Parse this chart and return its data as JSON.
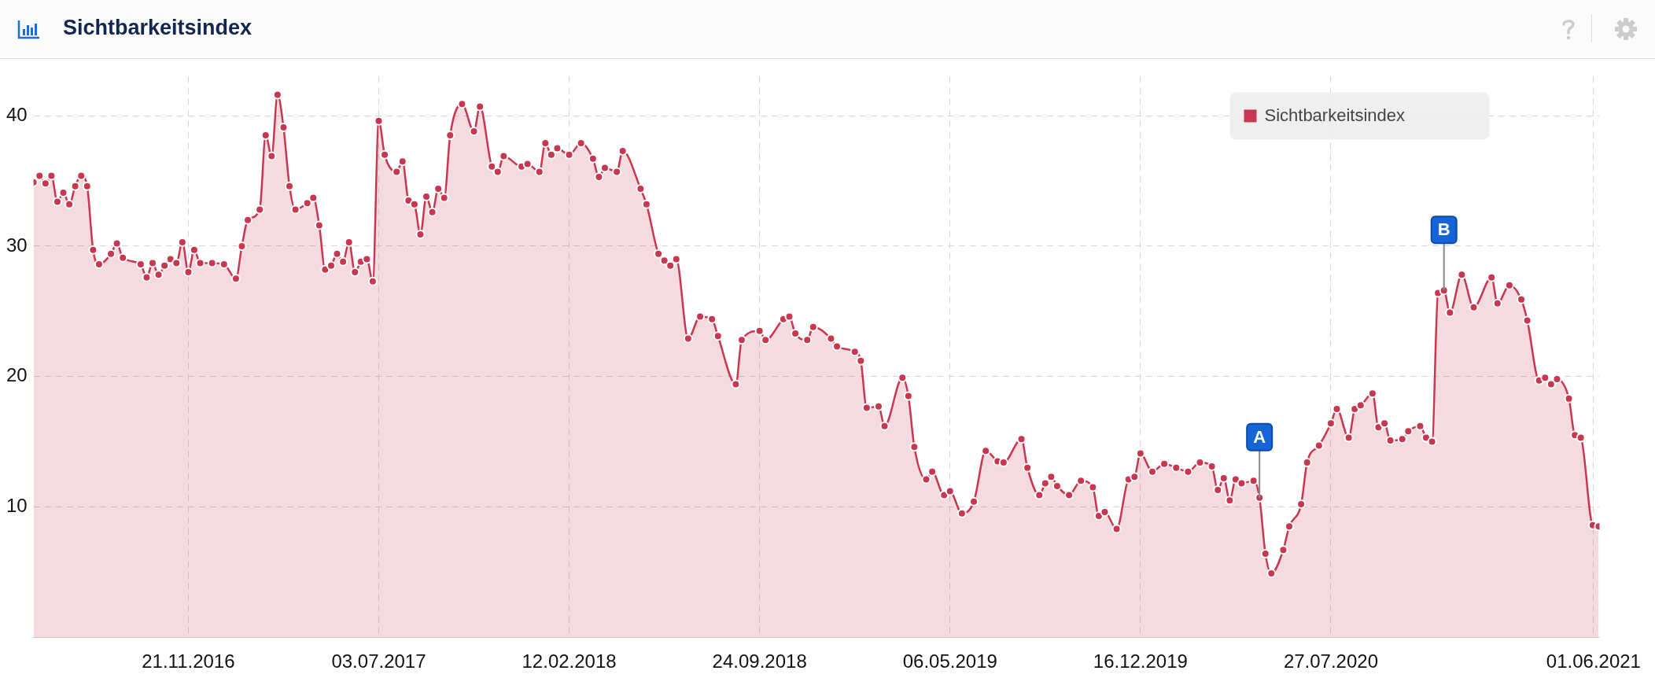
{
  "chart_data": {
    "type": "area",
    "title": "Sichtbarkeitsindex",
    "x": [
      "2016-05-23",
      "2016-05-30",
      "2016-06-06",
      "2016-06-13",
      "2016-06-20",
      "2016-06-27",
      "2016-07-04",
      "2016-07-11",
      "2016-07-18",
      "2016-07-25",
      "2016-08-01",
      "2016-08-08",
      "2016-08-22",
      "2016-08-29",
      "2016-09-05",
      "2016-09-26",
      "2016-10-03",
      "2016-10-10",
      "2016-10-17",
      "2016-10-24",
      "2016-10-31",
      "2016-11-07",
      "2016-11-14",
      "2016-11-21",
      "2016-11-28",
      "2016-12-05",
      "2016-12-19",
      "2017-01-02",
      "2017-01-16",
      "2017-01-23",
      "2017-01-30",
      "2017-02-13",
      "2017-02-20",
      "2017-02-27",
      "2017-03-06",
      "2017-03-13",
      "2017-03-20",
      "2017-03-27",
      "2017-04-10",
      "2017-04-17",
      "2017-04-24",
      "2017-05-01",
      "2017-05-08",
      "2017-05-15",
      "2017-05-22",
      "2017-05-29",
      "2017-06-05",
      "2017-06-12",
      "2017-06-19",
      "2017-06-26",
      "2017-07-03",
      "2017-07-10",
      "2017-07-24",
      "2017-07-31",
      "2017-08-07",
      "2017-08-14",
      "2017-08-21",
      "2017-08-28",
      "2017-09-04",
      "2017-09-11",
      "2017-09-18",
      "2017-09-25",
      "2017-10-09",
      "2017-10-23",
      "2017-10-30",
      "2017-11-13",
      "2017-11-20",
      "2017-11-27",
      "2017-12-18",
      "2017-12-25",
      "2018-01-08",
      "2018-01-15",
      "2018-01-22",
      "2018-01-29",
      "2018-02-12",
      "2018-02-26",
      "2018-03-12",
      "2018-03-19",
      "2018-03-26",
      "2018-04-09",
      "2018-04-16",
      "2018-05-07",
      "2018-05-14",
      "2018-05-28",
      "2018-06-04",
      "2018-06-11",
      "2018-06-18",
      "2018-07-02",
      "2018-07-16",
      "2018-07-30",
      "2018-08-06",
      "2018-08-27",
      "2018-09-03",
      "2018-09-24",
      "2018-10-01",
      "2018-10-22",
      "2018-10-29",
      "2018-11-05",
      "2018-11-19",
      "2018-11-26",
      "2018-12-17",
      "2018-12-24",
      "2019-01-14",
      "2019-01-21",
      "2019-01-28",
      "2019-02-11",
      "2019-02-18",
      "2019-03-11",
      "2019-03-18",
      "2019-03-25",
      "2019-04-08",
      "2019-04-15",
      "2019-04-29",
      "2019-05-06",
      "2019-05-20",
      "2019-06-03",
      "2019-06-17",
      "2019-07-01",
      "2019-07-08",
      "2019-07-29",
      "2019-08-05",
      "2019-08-19",
      "2019-08-26",
      "2019-09-02",
      "2019-09-09",
      "2019-09-23",
      "2019-10-07",
      "2019-10-21",
      "2019-10-28",
      "2019-11-04",
      "2019-11-18",
      "2019-12-02",
      "2019-12-09",
      "2019-12-16",
      "2019-12-30",
      "2020-01-13",
      "2020-01-27",
      "2020-02-10",
      "2020-02-24",
      "2020-03-09",
      "2020-03-16",
      "2020-03-23",
      "2020-03-30",
      "2020-04-06",
      "2020-04-13",
      "2020-04-27",
      "2020-05-04",
      "2020-05-11",
      "2020-05-18",
      "2020-06-01",
      "2020-06-08",
      "2020-06-22",
      "2020-06-29",
      "2020-07-13",
      "2020-07-27",
      "2020-08-03",
      "2020-08-17",
      "2020-08-24",
      "2020-08-31",
      "2020-09-14",
      "2020-09-21",
      "2020-09-28",
      "2020-10-05",
      "2020-10-19",
      "2020-10-26",
      "2020-11-09",
      "2020-11-16",
      "2020-11-23",
      "2020-11-30",
      "2020-12-07",
      "2020-12-14",
      "2020-12-28",
      "2021-01-11",
      "2021-02-01",
      "2021-02-08",
      "2021-02-22",
      "2021-03-08",
      "2021-03-15",
      "2021-03-29",
      "2021-04-05",
      "2021-04-12",
      "2021-04-19",
      "2021-05-03",
      "2021-05-10",
      "2021-05-17",
      "2021-05-31",
      "2021-06-07"
    ],
    "series": [
      {
        "name": "Sichtbarkeitsindex",
        "color": "#c8374f",
        "values": [
          34.9,
          35.4,
          34.8,
          35.4,
          33.4,
          34.1,
          33.2,
          34.6,
          35.4,
          34.6,
          29.7,
          28.6,
          29.4,
          30.2,
          29.1,
          28.6,
          27.6,
          28.7,
          27.8,
          28.5,
          29.0,
          28.7,
          30.3,
          28.0,
          29.7,
          28.7,
          28.7,
          28.6,
          27.5,
          30.0,
          32.0,
          32.8,
          38.5,
          36.9,
          41.6,
          39.1,
          34.6,
          32.8,
          33.3,
          33.7,
          31.6,
          28.2,
          28.5,
          29.4,
          28.8,
          30.3,
          28.0,
          28.8,
          29.0,
          27.3,
          39.6,
          37.0,
          35.7,
          36.5,
          33.5,
          33.2,
          30.9,
          33.8,
          32.6,
          34.4,
          33.7,
          38.5,
          40.9,
          38.8,
          40.7,
          36.1,
          35.7,
          36.9,
          36.1,
          36.3,
          35.7,
          37.9,
          37.0,
          37.5,
          37.0,
          37.9,
          36.7,
          35.3,
          36.0,
          35.7,
          37.3,
          34.4,
          33.2,
          29.4,
          28.9,
          28.5,
          29.0,
          22.9,
          24.6,
          24.4,
          23.1,
          19.4,
          22.8,
          23.5,
          22.8,
          24.4,
          24.6,
          23.3,
          22.8,
          23.8,
          22.9,
          22.3,
          21.9,
          21.2,
          17.6,
          17.7,
          16.2,
          19.9,
          18.5,
          14.6,
          12.1,
          12.7,
          10.9,
          11.2,
          9.5,
          10.4,
          14.3,
          13.5,
          13.4,
          15.2,
          13.0,
          10.9,
          11.8,
          12.3,
          11.6,
          10.9,
          12.0,
          11.5,
          9.3,
          9.6,
          8.3,
          12.1,
          12.3,
          14.1,
          12.7,
          13.3,
          13.0,
          12.7,
          13.4,
          13.1,
          11.3,
          12.2,
          10.5,
          12.1,
          11.8,
          12.0,
          10.7,
          6.4,
          4.9,
          6.7,
          8.5,
          10.2,
          13.4,
          14.7,
          16.4,
          17.5,
          15.3,
          17.5,
          17.8,
          18.7,
          16.1,
          16.4,
          15.1,
          15.2,
          15.8,
          16.2,
          15.3,
          15.0,
          26.4,
          26.6,
          24.9,
          27.8,
          25.3,
          27.6,
          25.6,
          27.0,
          25.9,
          24.3,
          19.7,
          19.9,
          19.4,
          19.8,
          18.3,
          15.5,
          15.3,
          8.6,
          8.5
        ]
      }
    ],
    "xlim": [
      "2016-05-23",
      "2021-06-08"
    ],
    "xticks": [
      {
        "value": "2016-11-21",
        "label": "21.11.2016"
      },
      {
        "value": "2017-07-03",
        "label": "03.07.2017"
      },
      {
        "value": "2018-02-12",
        "label": "12.02.2018"
      },
      {
        "value": "2018-09-24",
        "label": "24.09.2018"
      },
      {
        "value": "2019-05-06",
        "label": "06.05.2019"
      },
      {
        "value": "2019-12-16",
        "label": "16.12.2019"
      },
      {
        "value": "2020-07-27",
        "label": "27.07.2020"
      },
      {
        "value": "2021-06-01",
        "label": "01.06.2021"
      }
    ],
    "ylim": [
      0,
      43
    ],
    "yticks": [
      10,
      20,
      30,
      40
    ],
    "grid": true,
    "legend": "top right",
    "marker": "circle",
    "annotations": [
      {
        "text": "A",
        "x": "2020-05-04",
        "y": 10.7
      },
      {
        "text": "B",
        "x": "2020-12-07",
        "y": 26.6
      }
    ]
  }
}
